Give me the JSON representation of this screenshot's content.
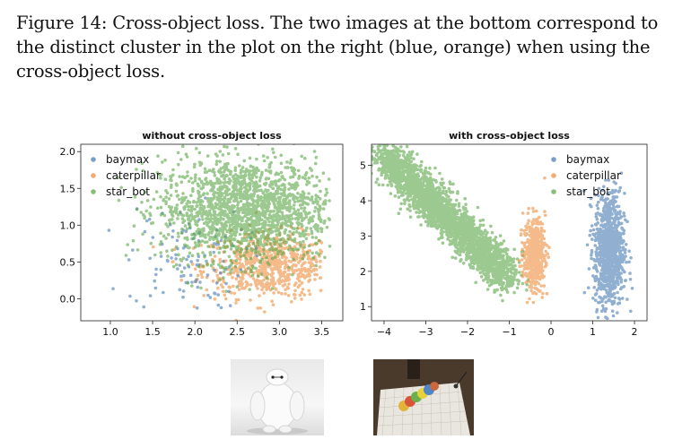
{
  "caption": {
    "text": "Figure 14: Cross-object loss. The two images at the bottom correspond to the distinct cluster in the plot on the right (blue, orange) when using the cross-object loss."
  },
  "colors": {
    "baymax": "#4c7eb5",
    "caterpillar": "#ee9040",
    "star_bot": "#5fa84a"
  },
  "chart_data": [
    {
      "type": "scatter",
      "title": "without cross-object loss",
      "xlabel": "",
      "ylabel": "",
      "xlim": [
        0.65,
        3.75
      ],
      "ylim": [
        -0.3,
        2.1
      ],
      "xticks": [
        1.0,
        1.5,
        2.0,
        2.5,
        3.0,
        3.5
      ],
      "xtick_labels": [
        "1.0",
        "1.5",
        "2.0",
        "2.5",
        "3.0",
        "3.5"
      ],
      "yticks": [
        0.0,
        0.5,
        1.0,
        1.5,
        2.0
      ],
      "ytick_labels": [
        "0.0",
        "0.5",
        "1.0",
        "1.5",
        "2.0"
      ],
      "legend_position": "top-left",
      "series": [
        {
          "name": "baymax",
          "cluster": {
            "cx": 1.9,
            "cy": 0.55,
            "sx": 0.35,
            "sy": 0.35,
            "n": 110,
            "min_x": 0.7,
            "max_x": 2.9
          }
        },
        {
          "name": "caterpillar",
          "cluster": {
            "cx": 2.9,
            "cy": 0.45,
            "sx": 0.4,
            "sy": 0.22,
            "n": 700,
            "min_x": 1.2,
            "max_x": 3.5
          }
        },
        {
          "name": "star_bot",
          "cluster": {
            "cx": 2.6,
            "cy": 1.2,
            "sx": 0.5,
            "sy": 0.35,
            "n": 1800,
            "min_x": 1.0,
            "max_x": 3.6
          }
        }
      ]
    },
    {
      "type": "scatter",
      "title": "with cross-object loss",
      "xlabel": "",
      "ylabel": "",
      "xlim": [
        -4.3,
        2.3
      ],
      "ylim": [
        0.6,
        5.6
      ],
      "xticks": [
        -4,
        -3,
        -2,
        -1,
        0,
        1,
        2
      ],
      "xtick_labels": [
        "−4",
        "−3",
        "−2",
        "−1",
        "0",
        "1",
        "2"
      ],
      "yticks": [
        1,
        2,
        3,
        4,
        5
      ],
      "ytick_labels": [
        "1",
        "2",
        "3",
        "4",
        "5"
      ],
      "legend_position": "top-right",
      "series": [
        {
          "name": "baymax",
          "cluster": {
            "cx": 1.4,
            "cy": 2.6,
            "sx": 0.18,
            "sy": 0.8,
            "n": 900
          }
        },
        {
          "name": "caterpillar",
          "cluster": {
            "cx": -0.4,
            "cy": 2.5,
            "sx": 0.13,
            "sy": 0.5,
            "n": 500
          }
        },
        {
          "name": "star_bot",
          "cluster": {
            "x_start": -4.0,
            "y_start": 5.3,
            "x_end": -1.0,
            "y_end": 1.8,
            "spread": 0.35,
            "n": 2600
          }
        }
      ]
    }
  ],
  "images": [
    {
      "name": "baymax"
    },
    {
      "name": "caterpillar"
    }
  ]
}
